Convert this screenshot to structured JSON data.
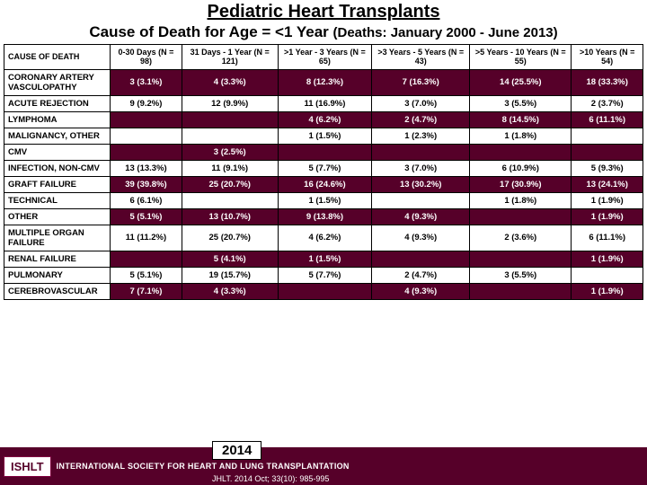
{
  "title": "Pediatric Heart Transplants",
  "subtitle_main": "Cause of Death for Age = <1 Year ",
  "subtitle_small": "(Deaths: January 2000 - June 2013)",
  "header_row_label": "CAUSE OF DEATH",
  "columns": [
    "0-30 Days (N = 98)",
    "31 Days - 1 Year (N = 121)",
    ">1 Year - 3 Years (N = 65)",
    ">3 Years - 5 Years (N = 43)",
    ">5 Years - 10 Years (N = 55)",
    ">10 Years (N = 54)"
  ],
  "rows": [
    {
      "label": "CORONARY ARTERY VASCULOPATHY",
      "cells": [
        "3 (3.1%)",
        "4 (3.3%)",
        "8 (12.3%)",
        "7 (16.3%)",
        "14 (25.5%)",
        "18 (33.3%)"
      ]
    },
    {
      "label": "ACUTE REJECTION",
      "cells": [
        "9 (9.2%)",
        "12 (9.9%)",
        "11 (16.9%)",
        "3 (7.0%)",
        "3 (5.5%)",
        "2 (3.7%)"
      ]
    },
    {
      "label": "LYMPHOMA",
      "cells": [
        "",
        "",
        "4 (6.2%)",
        "2 (4.7%)",
        "8 (14.5%)",
        "6 (11.1%)"
      ]
    },
    {
      "label": "MALIGNANCY, OTHER",
      "cells": [
        "",
        "",
        "1 (1.5%)",
        "1 (2.3%)",
        "1 (1.8%)",
        ""
      ]
    },
    {
      "label": "CMV",
      "cells": [
        "",
        "3 (2.5%)",
        "",
        "",
        "",
        ""
      ]
    },
    {
      "label": "INFECTION, NON-CMV",
      "cells": [
        "13 (13.3%)",
        "11 (9.1%)",
        "5 (7.7%)",
        "3 (7.0%)",
        "6 (10.9%)",
        "5 (9.3%)"
      ]
    },
    {
      "label": "GRAFT FAILURE",
      "cells": [
        "39 (39.8%)",
        "25 (20.7%)",
        "16 (24.6%)",
        "13 (30.2%)",
        "17 (30.9%)",
        "13 (24.1%)"
      ]
    },
    {
      "label": "TECHNICAL",
      "cells": [
        "6 (6.1%)",
        "",
        "1 (1.5%)",
        "",
        "1 (1.8%)",
        "1 (1.9%)"
      ]
    },
    {
      "label": "OTHER",
      "cells": [
        "5 (5.1%)",
        "13 (10.7%)",
        "9 (13.8%)",
        "4 (9.3%)",
        "",
        "1 (1.9%)"
      ]
    },
    {
      "label": "MULTIPLE ORGAN FAILURE",
      "cells": [
        "11 (11.2%)",
        "25 (20.7%)",
        "4 (6.2%)",
        "4 (9.3%)",
        "2 (3.6%)",
        "6 (11.1%)"
      ]
    },
    {
      "label": "RENAL FAILURE",
      "cells": [
        "",
        "5 (4.1%)",
        "1 (1.5%)",
        "",
        "",
        "1 (1.9%)"
      ]
    },
    {
      "label": "PULMONARY",
      "cells": [
        "5 (5.1%)",
        "19 (15.7%)",
        "5 (7.7%)",
        "2 (4.7%)",
        "3 (5.5%)",
        ""
      ]
    },
    {
      "label": "CEREBROVASCULAR",
      "cells": [
        "7 (7.1%)",
        "4 (3.3%)",
        "",
        "4 (9.3%)",
        "",
        "1 (1.9%)"
      ]
    }
  ],
  "year_badge": "2014",
  "citation": "JHLT. 2014 Oct; 33(10): 985-995",
  "footer_logo": "ISHLT",
  "footer_text": "INTERNATIONAL SOCIETY FOR HEART AND LUNG TRANSPLANTATION",
  "colors": {
    "brand": "#560029",
    "white": "#ffffff",
    "black": "#000000"
  }
}
